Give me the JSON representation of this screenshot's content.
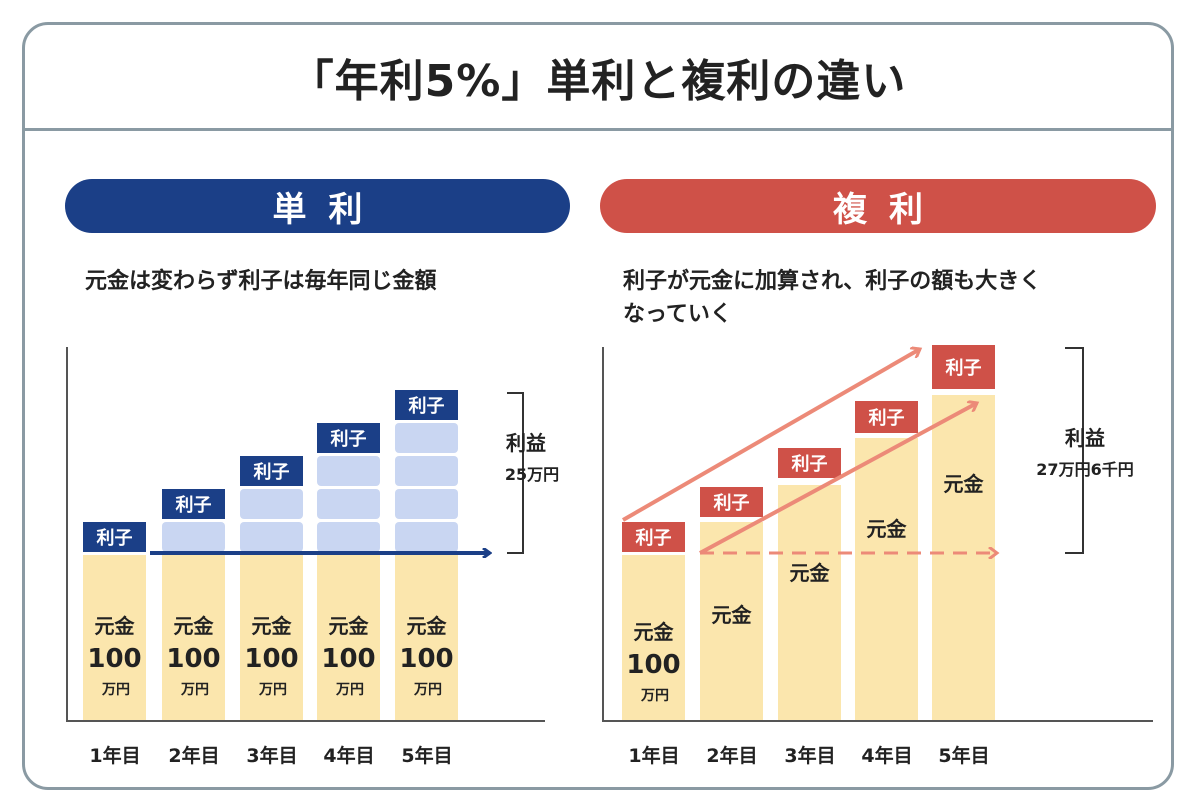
{
  "title": "「年利5%」単利と複利の違い",
  "simple": {
    "heading": "単利",
    "description": "元金は変わらず利子は毎年同じ金額",
    "interest_tag": "利子",
    "principal_label": "元金",
    "principal_amount": "100",
    "principal_unit": "万円",
    "years": [
      "1年目",
      "2年目",
      "3年目",
      "4年目",
      "5年目"
    ],
    "profit_label": "利益",
    "profit_value": "25万円"
  },
  "compound": {
    "heading": "複利",
    "description": "利子が元金に加算され、利子の額も大きく\nなっていく",
    "interest_tag": "利子",
    "principal_label": "元金",
    "principal_amount": "100",
    "principal_unit": "万円",
    "years": [
      "1年目",
      "2年目",
      "3年目",
      "4年目",
      "5年目"
    ],
    "profit_label": "利益",
    "profit_value": "27万円6千円"
  },
  "colors": {
    "simple": "#1b3f87",
    "compound": "#cf5148",
    "principal": "#fbe6ad",
    "simple_interest_block": "#c9d6f2",
    "compound_arrow": "#ec8a78"
  }
}
